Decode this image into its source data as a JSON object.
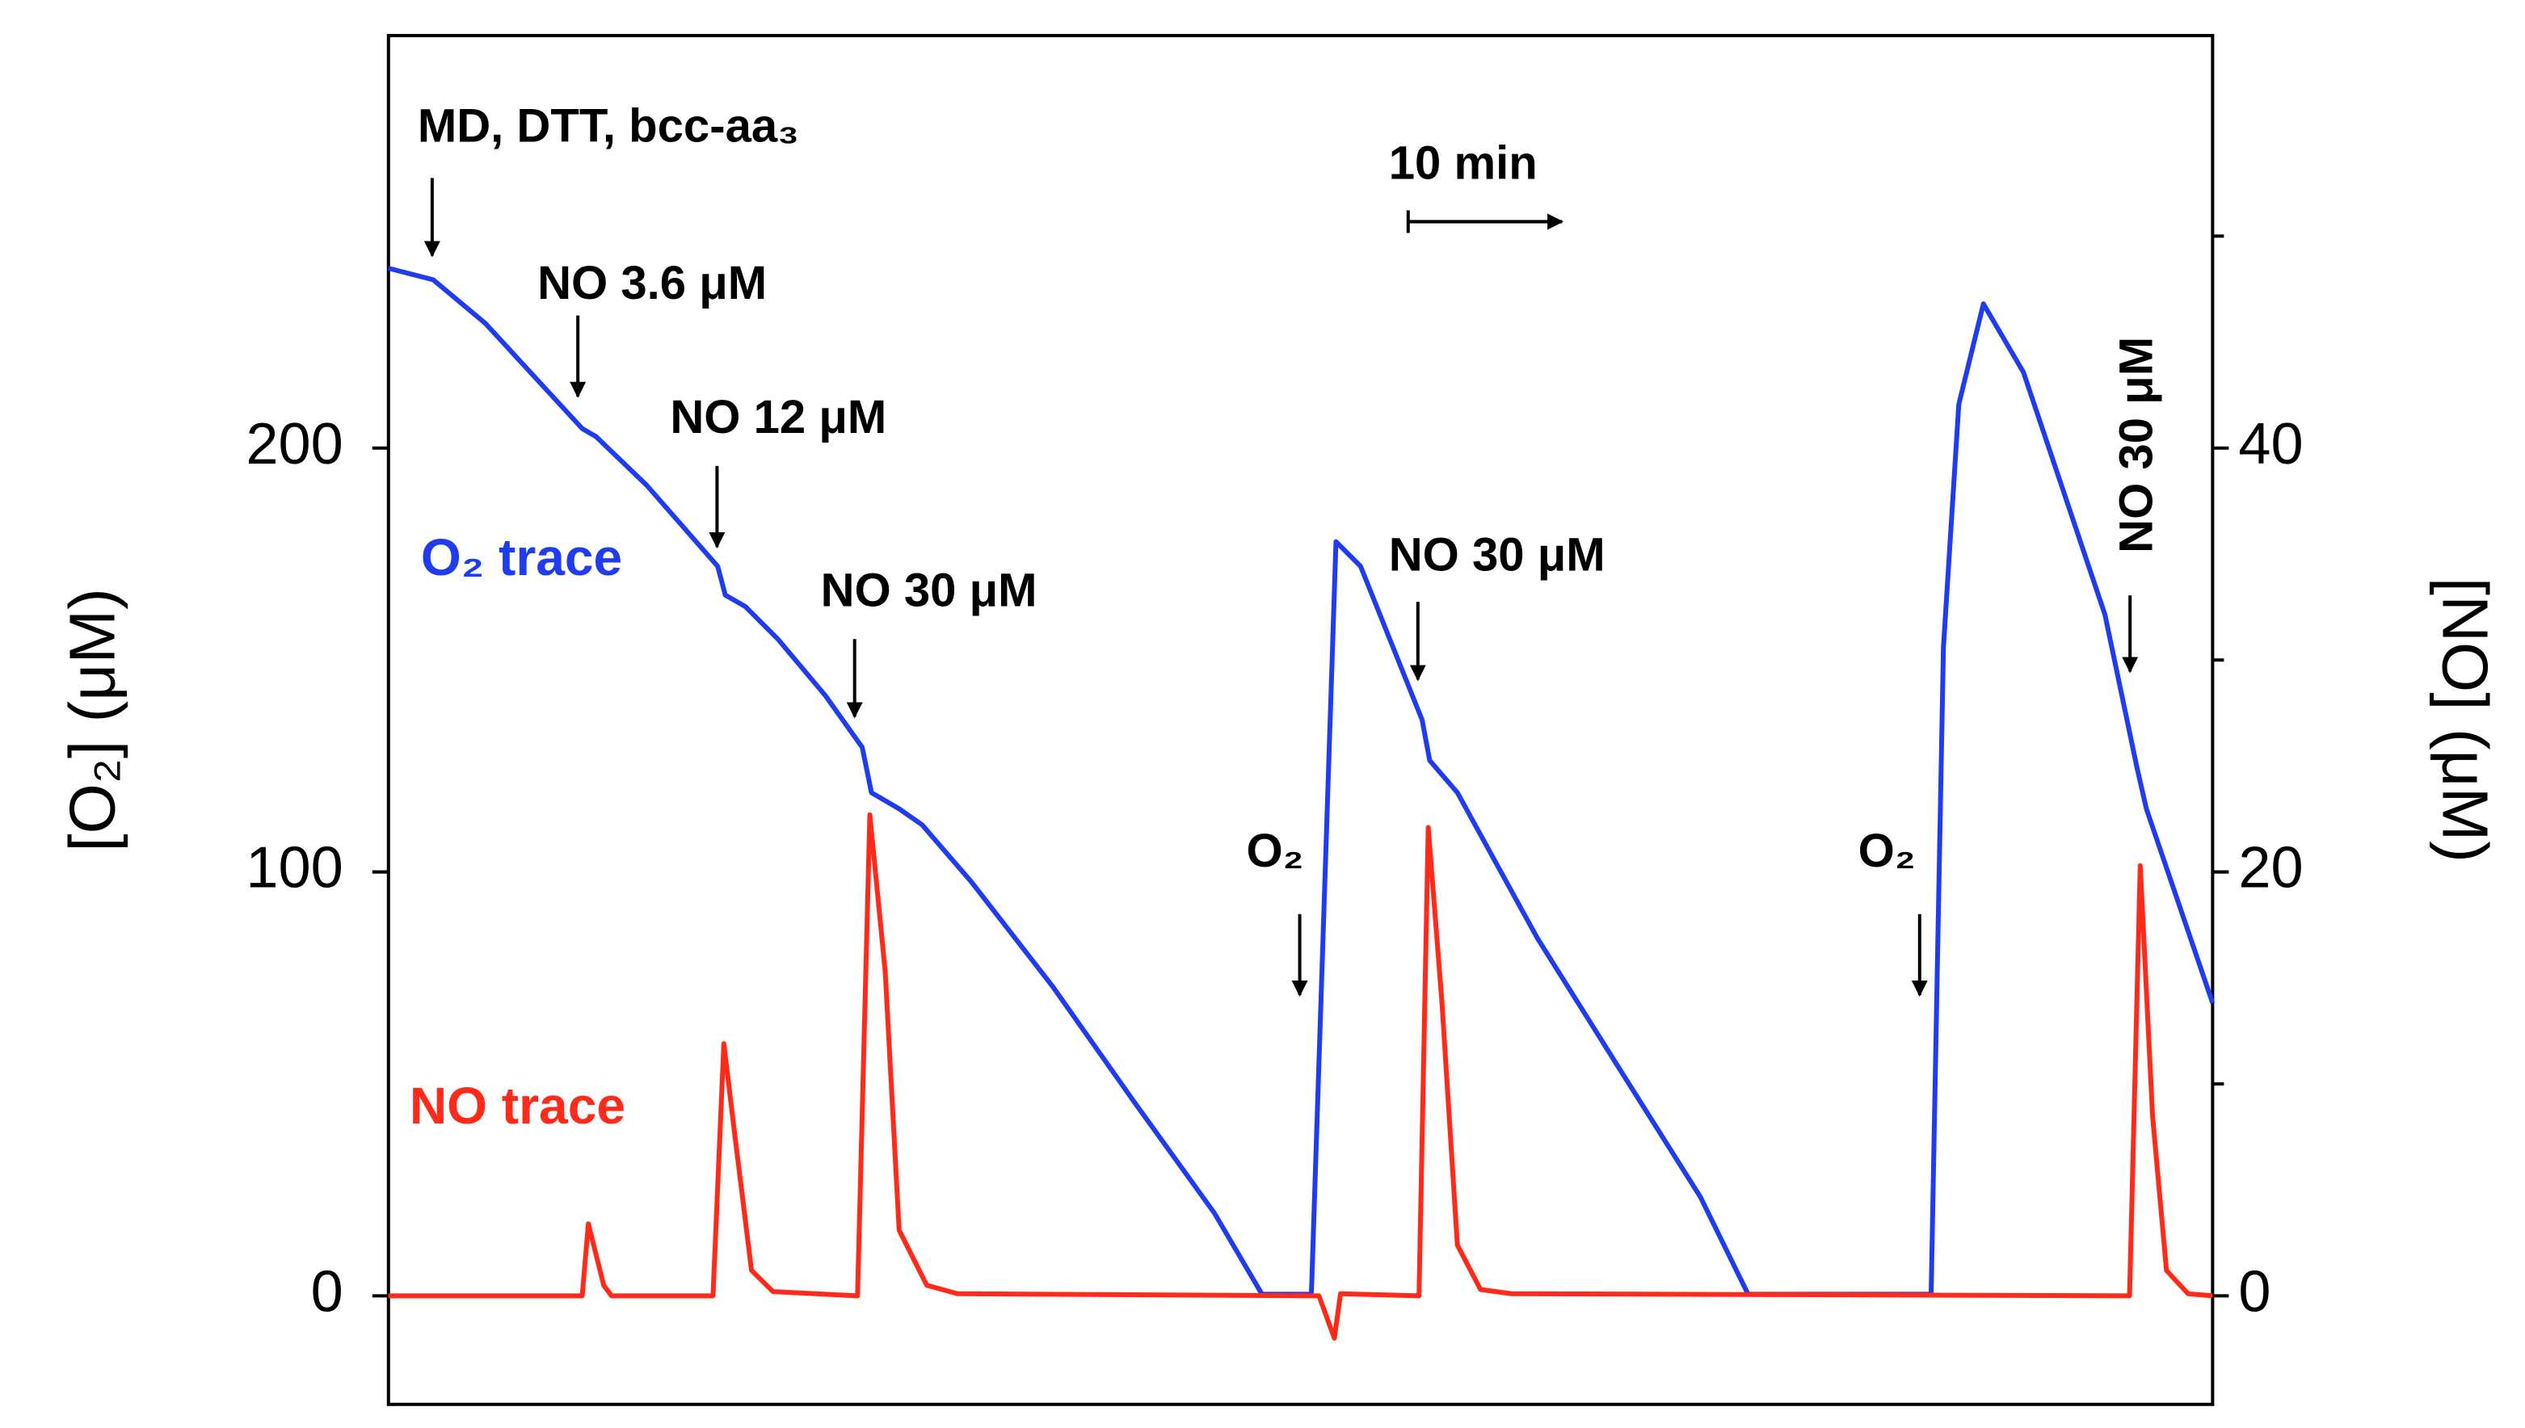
{
  "chart_data": {
    "type": "line",
    "ylabel": "[O₂] (μM)",
    "y2label": "[NO] (μM)",
    "xlim": [
      0,
      118.6
    ],
    "ylim": [
      -25.6,
      297.3
    ],
    "yticks": [
      0,
      100,
      200
    ],
    "y2lim": [
      -5.12,
      59.46
    ],
    "y2ticks": [
      0,
      20,
      40
    ],
    "y2minor_ticks": [
      10,
      30,
      50
    ],
    "scale_bar": {
      "label": "10 min",
      "value": 10
    },
    "annotations": [
      "MD, DTT, bcc-aa₃",
      "NO 3.6 μM",
      "NO 12 μM",
      "NO 30 μM",
      "O₂",
      "NO 30 μM",
      "O₂",
      "NO 30 μM"
    ],
    "series": [
      {
        "name": "O₂ trace",
        "color": "#1f3cf0",
        "axis": "y",
        "x": [
          0,
          2.9,
          6.3,
          12.6,
          13.5,
          16.8,
          21.4,
          21.9,
          23.2,
          25.3,
          28.4,
          30.8,
          31.4,
          33.2,
          34.7,
          37.9,
          43.2,
          48.4,
          53.7,
          56.8,
          60,
          61.6,
          63.2,
          67.2,
          67.7,
          69.5,
          74.7,
          80,
          85.3,
          88.4,
          100.3,
          101.1,
          102.1,
          103.7,
          106.3,
          111.6,
          113.7,
          114.3,
          118.6
        ],
        "values": [
          242.4,
          239.7,
          229.4,
          204.6,
          202.7,
          191.2,
          172.1,
          165.3,
          162.6,
          155,
          141.6,
          129.4,
          118.7,
          114.9,
          111.1,
          97.7,
          72.9,
          46.2,
          19.5,
          0.4,
          0.4,
          177.9,
          172.1,
          135.9,
          126.3,
          118.7,
          84.4,
          53.8,
          23.3,
          0.4,
          0.4,
          153,
          210.3,
          234,
          217.9,
          160.7,
          124.4,
          114.9,
          69.1
        ]
      },
      {
        "name": "NO trace",
        "color": "#ff2a1a",
        "axis": "y2",
        "x": [
          0,
          12.6,
          13.0,
          14.0,
          14.5,
          21.1,
          21.8,
          22.5,
          23.6,
          25,
          30.5,
          31.3,
          32.3,
          33.2,
          35,
          37,
          60.5,
          61.1,
          61.5,
          61.9,
          67.0,
          67.6,
          68.5,
          69.5,
          71,
          73,
          113.2,
          113.9,
          114.7,
          115.6,
          117,
          118.6
        ],
        "values": [
          0,
          0,
          3.4,
          0.5,
          0,
          0,
          11.9,
          7.7,
          1.2,
          0.2,
          0,
          22.7,
          15.3,
          3.1,
          0.5,
          0.1,
          0,
          -1.2,
          -2.0,
          0.1,
          0,
          22.1,
          13.8,
          2.4,
          0.3,
          0.1,
          0,
          20.3,
          8.5,
          1.2,
          0.1,
          0
        ]
      }
    ]
  }
}
